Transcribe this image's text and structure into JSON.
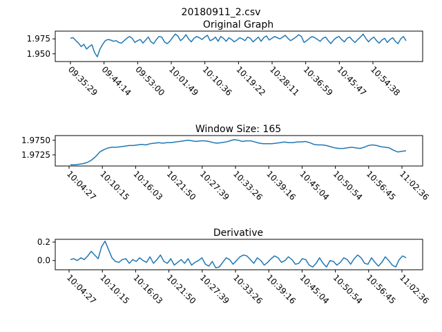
{
  "figure": {
    "suptitle": "20180911_2.csv"
  },
  "chart_data": [
    {
      "type": "line",
      "title": "Original Graph",
      "xlabel": "",
      "ylabel": "",
      "x_ticks": [
        "09:35:29",
        "09:44:14",
        "09:53:00",
        "10:01:49",
        "10:10:36",
        "10:19:22",
        "10:28:11",
        "10:36:59",
        "10:45:47",
        "10:54:38"
      ],
      "y_ticks": [
        "1.950",
        "1.975"
      ],
      "ylim": [
        1.937,
        1.988
      ],
      "y_tick_values": [
        1.95,
        1.975
      ],
      "grid": false,
      "color": "#1f77b4",
      "series": [
        {
          "values": [
            1.976,
            1.977,
            1.972,
            1.968,
            1.962,
            1.966,
            1.958,
            1.962,
            1.965,
            1.952,
            1.945,
            1.958,
            1.966,
            1.972,
            1.974,
            1.973,
            1.971,
            1.972,
            1.969,
            1.968,
            1.972,
            1.976,
            1.979,
            1.976,
            1.969,
            1.972,
            1.974,
            1.968,
            1.973,
            1.978,
            1.97,
            1.967,
            1.974,
            1.979,
            1.978,
            1.97,
            1.967,
            1.971,
            1.977,
            1.983,
            1.98,
            1.972,
            1.976,
            1.982,
            1.975,
            1.97,
            1.976,
            1.979,
            1.977,
            1.974,
            1.978,
            1.981,
            1.972,
            1.974,
            1.978,
            1.971,
            1.979,
            1.976,
            1.971,
            1.977,
            1.974,
            1.97,
            1.973,
            1.977,
            1.975,
            1.972,
            1.978,
            1.976,
            1.97,
            1.974,
            1.978,
            1.971,
            1.977,
            1.98,
            1.973,
            1.976,
            1.979,
            1.977,
            1.975,
            1.978,
            1.981,
            1.976,
            1.972,
            1.975,
            1.978,
            1.982,
            1.979,
            1.969,
            1.972,
            1.976,
            1.979,
            1.977,
            1.974,
            1.971,
            1.976,
            1.978,
            1.972,
            1.967,
            1.973,
            1.977,
            1.979,
            1.974,
            1.97,
            1.976,
            1.978,
            1.973,
            1.969,
            1.974,
            1.978,
            1.983,
            1.976,
            1.97,
            1.975,
            1.978,
            1.972,
            1.968,
            1.973,
            1.976,
            1.969,
            1.974,
            1.977,
            1.971,
            1.967,
            1.975,
            1.979,
            1.972
          ]
        }
      ]
    },
    {
      "type": "line",
      "title": "Window Size: 165",
      "xlabel": "",
      "ylabel": "",
      "x_ticks": [
        "10:04:27",
        "10:10:15",
        "10:16:03",
        "10:21:50",
        "10:27:39",
        "10:33:26",
        "10:39:16",
        "10:45:04",
        "10:50:54",
        "10:56:45",
        "11:02:36"
      ],
      "y_ticks": [
        "1.9725",
        "1.9750"
      ],
      "ylim": [
        1.9706,
        1.9758
      ],
      "y_tick_values": [
        1.9725,
        1.975
      ],
      "grid": false,
      "color": "#1f77b4",
      "series": [
        {
          "values": [
            1.9708,
            1.9708,
            1.9709,
            1.971,
            1.9712,
            1.9716,
            1.9722,
            1.973,
            1.9734,
            1.9737,
            1.9738,
            1.9738,
            1.9739,
            1.974,
            1.9741,
            1.9741,
            1.9742,
            1.9743,
            1.9742,
            1.9744,
            1.9745,
            1.9746,
            1.9745,
            1.9746,
            1.9746,
            1.9747,
            1.9748,
            1.9749,
            1.975,
            1.9749,
            1.9748,
            1.9749,
            1.9749,
            1.9748,
            1.9746,
            1.9745,
            1.9746,
            1.9747,
            1.9749,
            1.9751,
            1.975,
            1.9748,
            1.9749,
            1.9749,
            1.9747,
            1.9745,
            1.9744,
            1.9744,
            1.9744,
            1.9745,
            1.9746,
            1.9747,
            1.9746,
            1.9746,
            1.9747,
            1.9747,
            1.9748,
            1.9746,
            1.9743,
            1.9742,
            1.9742,
            1.9741,
            1.9739,
            1.9737,
            1.9736,
            1.9736,
            1.9737,
            1.9738,
            1.9737,
            1.9736,
            1.9738,
            1.9741,
            1.9742,
            1.9741,
            1.9739,
            1.9738,
            1.9737,
            1.9733,
            1.973,
            1.9731,
            1.9732
          ]
        }
      ]
    },
    {
      "type": "line",
      "title": "Derivative",
      "xlabel": "",
      "ylabel": "",
      "x_ticks": [
        "10:04:27",
        "10:10:15",
        "10:16:03",
        "10:21:50",
        "10:27:39",
        "10:33:26",
        "10:39:16",
        "10:45:04",
        "10:50:54",
        "10:56:45",
        "11:02:36"
      ],
      "y_ticks": [
        "0.0",
        "0.2"
      ],
      "ylim": [
        -0.1,
        0.23
      ],
      "y_tick_values": [
        0.0,
        0.2
      ],
      "grid": false,
      "color": "#1f77b4",
      "series": [
        {
          "values": [
            0.01,
            0.02,
            0.0,
            0.03,
            0.01,
            0.05,
            0.1,
            0.06,
            0.02,
            0.15,
            0.21,
            0.12,
            0.03,
            -0.01,
            -0.02,
            0.01,
            0.02,
            -0.03,
            0.01,
            -0.01,
            0.03,
            0.0,
            -0.02,
            0.04,
            -0.03,
            0.01,
            0.06,
            -0.01,
            -0.03,
            0.02,
            -0.05,
            -0.02,
            0.01,
            -0.03,
            0.02,
            -0.05,
            -0.02,
            0.0,
            0.03,
            -0.04,
            -0.06,
            -0.01,
            -0.08,
            -0.07,
            -0.02,
            0.03,
            0.01,
            -0.04,
            0.0,
            0.04,
            0.06,
            0.05,
            0.01,
            -0.03,
            0.03,
            0.0,
            -0.05,
            -0.02,
            0.02,
            0.05,
            0.03,
            -0.02,
            0.0,
            0.04,
            0.01,
            -0.04,
            -0.03,
            0.02,
            0.01,
            -0.05,
            -0.07,
            -0.03,
            0.03,
            -0.03,
            -0.07,
            0.0,
            -0.01,
            -0.05,
            -0.02,
            0.03,
            0.01,
            -0.04,
            0.02,
            0.06,
            0.03,
            -0.03,
            -0.04,
            0.03,
            -0.02,
            -0.06,
            -0.02,
            0.04,
            0.0,
            -0.05,
            -0.07,
            0.01,
            0.05,
            0.03
          ]
        }
      ]
    }
  ]
}
